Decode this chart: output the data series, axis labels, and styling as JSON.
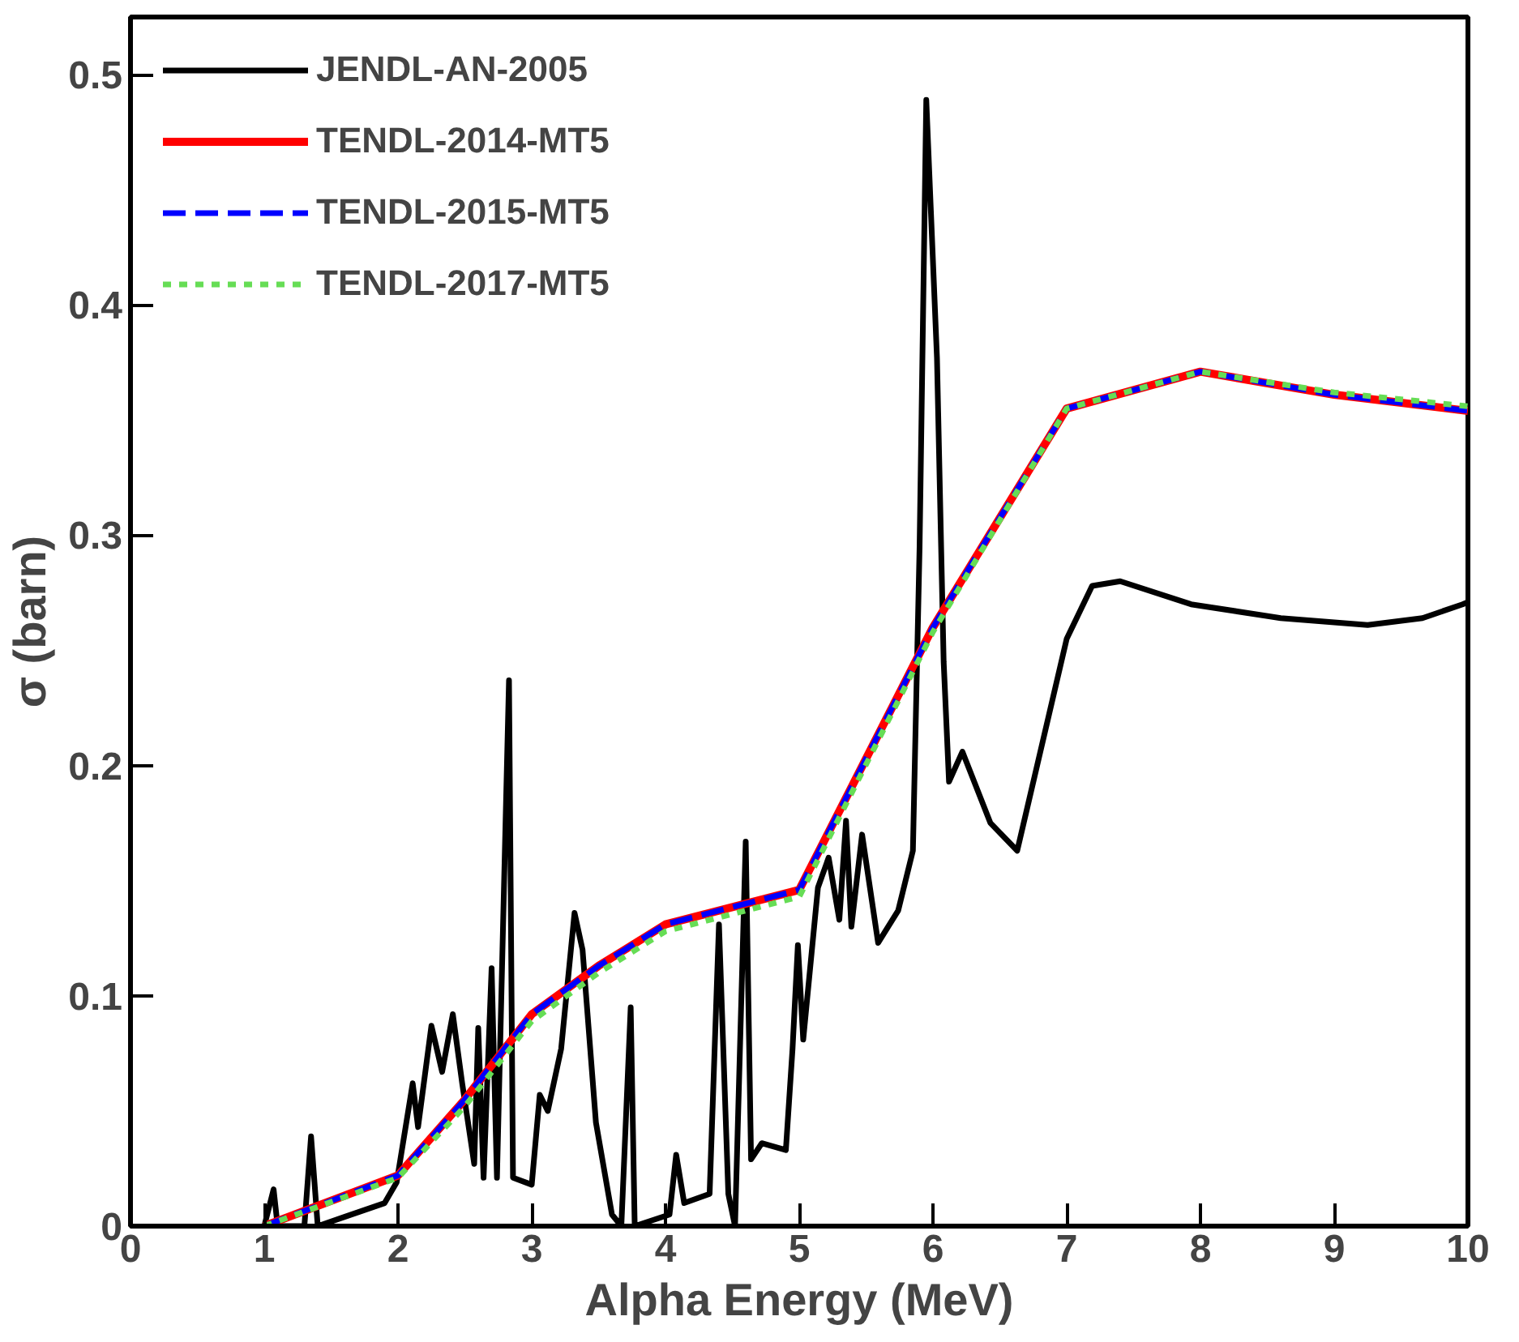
{
  "chart_data": {
    "type": "line",
    "xlabel": "Alpha Energy (MeV)",
    "ylabel": "σ (barn)",
    "xlim": [
      0,
      10
    ],
    "ylim": [
      0,
      0.525
    ],
    "xticks": [
      0,
      1,
      2,
      3,
      4,
      5,
      6,
      7,
      8,
      9,
      10
    ],
    "yticks": [
      0,
      0.1,
      0.2,
      0.3,
      0.4,
      0.5
    ],
    "grid": false,
    "legend": "top left",
    "series": [
      {
        "name": "JENDL-AN-2005",
        "color": "#000000",
        "line_style": "solid",
        "x": [
          1.0,
          1.07,
          1.1,
          1.3,
          1.35,
          1.4,
          1.6,
          1.9,
          1.99,
          2.11,
          2.15,
          2.25,
          2.33,
          2.41,
          2.48,
          2.57,
          2.6,
          2.64,
          2.7,
          2.74,
          2.83,
          2.86,
          3.0,
          3.06,
          3.12,
          3.22,
          3.32,
          3.38,
          3.48,
          3.6,
          3.67,
          3.74,
          3.77,
          4.03,
          4.08,
          4.14,
          4.33,
          4.4,
          4.47,
          4.52,
          4.6,
          4.64,
          4.72,
          4.9,
          4.95,
          4.99,
          5.03,
          5.14,
          5.22,
          5.3,
          5.35,
          5.39,
          5.47,
          5.59,
          5.74,
          5.85,
          5.9,
          5.95,
          6.03,
          6.08,
          6.12,
          6.22,
          6.43,
          6.63,
          7.0,
          7.19,
          7.4,
          7.93,
          8.6,
          9.25,
          9.66,
          9.96,
          10.0
        ],
        "values": [
          0.0,
          0.016,
          0.0,
          0.0,
          0.039,
          0.0,
          0.004,
          0.01,
          0.019,
          0.062,
          0.043,
          0.087,
          0.067,
          0.092,
          0.062,
          0.027,
          0.086,
          0.021,
          0.112,
          0.021,
          0.237,
          0.021,
          0.018,
          0.057,
          0.05,
          0.077,
          0.136,
          0.12,
          0.045,
          0.005,
          0.0,
          0.095,
          0.0,
          0.005,
          0.031,
          0.01,
          0.014,
          0.131,
          0.014,
          0.0,
          0.167,
          0.029,
          0.036,
          0.033,
          0.077,
          0.122,
          0.081,
          0.147,
          0.16,
          0.133,
          0.176,
          0.13,
          0.17,
          0.123,
          0.137,
          0.163,
          0.295,
          0.489,
          0.377,
          0.245,
          0.193,
          0.206,
          0.175,
          0.163,
          0.255,
          0.278,
          0.28,
          0.27,
          0.264,
          0.261,
          0.264,
          0.27,
          0.271
        ]
      },
      {
        "name": "TENDL-2014-MT5",
        "color": "#ff0000",
        "line_style": "solid",
        "x": [
          1,
          2,
          2.5,
          3,
          3.5,
          4,
          5,
          6,
          7,
          8,
          9,
          10
        ],
        "values": [
          0.0,
          0.022,
          0.055,
          0.092,
          0.113,
          0.131,
          0.146,
          0.26,
          0.355,
          0.371,
          0.361,
          0.354
        ]
      },
      {
        "name": "TENDL-2015-MT5",
        "color": "#0000ff",
        "line_style": "dashed",
        "x": [
          1,
          2,
          2.5,
          3,
          3.5,
          4,
          5,
          6,
          7,
          8,
          9,
          10
        ],
        "values": [
          0.0,
          0.022,
          0.055,
          0.092,
          0.113,
          0.131,
          0.146,
          0.26,
          0.355,
          0.371,
          0.361,
          0.354
        ]
      },
      {
        "name": "TENDL-2017-MT5",
        "color": "#66dd55",
        "line_style": "dotted",
        "x": [
          1,
          2,
          2.5,
          3,
          3.5,
          4,
          5,
          6,
          7,
          8,
          9,
          10
        ],
        "values": [
          0.0,
          0.021,
          0.052,
          0.089,
          0.11,
          0.128,
          0.143,
          0.258,
          0.355,
          0.371,
          0.362,
          0.356
        ]
      }
    ]
  }
}
